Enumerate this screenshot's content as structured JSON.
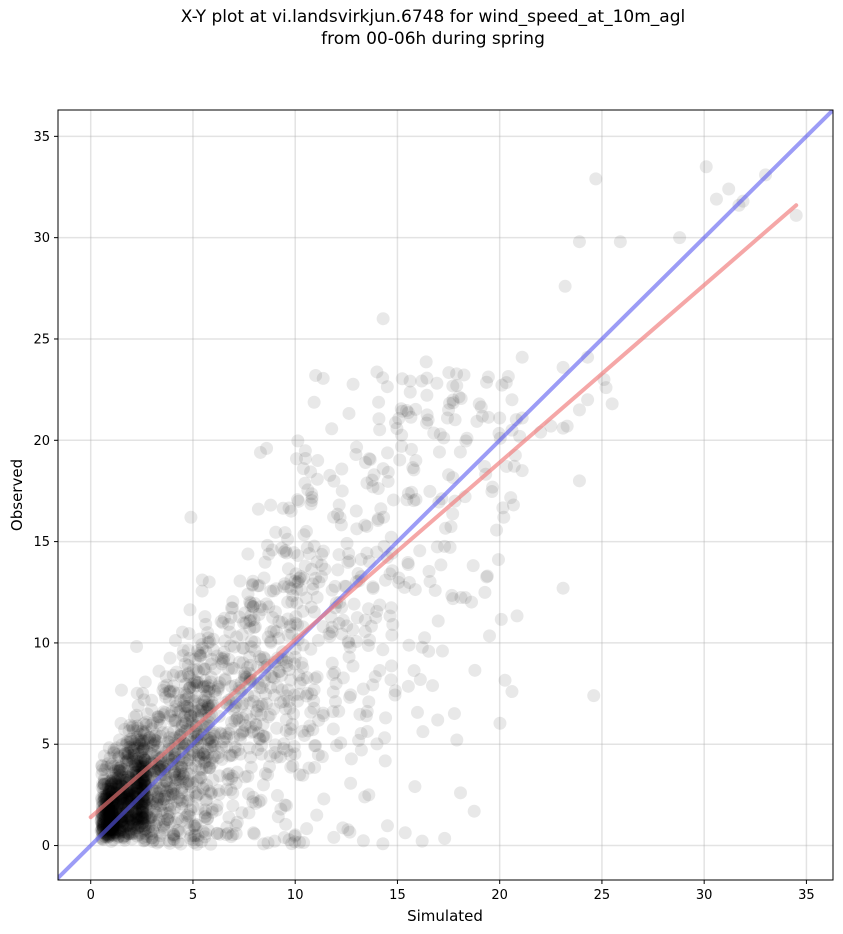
{
  "chart_data": {
    "type": "scatter",
    "title_line1": "X-Y plot at vi.landsvirkjun.6748 for wind_speed_at_10m_agl",
    "title_line2": "from 00-06h during spring",
    "xlabel": "Simulated",
    "ylabel": "Observed",
    "xlim": [
      -1.6,
      36.3
    ],
    "ylim": [
      -1.7,
      36.3
    ],
    "xticks": [
      0,
      5,
      10,
      15,
      20,
      25,
      30,
      35
    ],
    "yticks": [
      0,
      5,
      10,
      15,
      20,
      25,
      30,
      35
    ],
    "grid": true,
    "point_color": "#000000",
    "one_to_one_line": {
      "color": "#5a5af0",
      "from": [
        -1.6,
        -1.6
      ],
      "to": [
        36.3,
        36.3
      ]
    },
    "fit_line": {
      "color": "#f07878",
      "from": [
        0,
        1.4
      ],
      "to": [
        34.5,
        31.6
      ]
    },
    "highlight_points": [
      [
        30.1,
        33.5
      ],
      [
        24.7,
        32.9
      ],
      [
        31.2,
        32.4
      ],
      [
        33.0,
        33.1
      ],
      [
        30.6,
        31.9
      ],
      [
        31.7,
        31.6
      ],
      [
        31.9,
        31.8
      ],
      [
        34.5,
        31.1
      ],
      [
        28.8,
        30.0
      ],
      [
        23.9,
        29.8
      ],
      [
        25.9,
        29.8
      ],
      [
        23.2,
        27.6
      ],
      [
        14.3,
        26.0
      ],
      [
        11.0,
        23.2
      ],
      [
        21.1,
        24.1
      ],
      [
        24.3,
        24.1
      ],
      [
        23.1,
        23.6
      ],
      [
        25.1,
        23.0
      ],
      [
        25.2,
        22.6
      ],
      [
        17.9,
        22.7
      ],
      [
        20.6,
        22.0
      ],
      [
        24.3,
        22.0
      ],
      [
        25.5,
        21.8
      ],
      [
        19.0,
        21.8
      ],
      [
        17.5,
        21.5
      ],
      [
        23.9,
        21.5
      ],
      [
        20.0,
        21.1
      ],
      [
        21.1,
        21.1
      ],
      [
        16.5,
        21.0
      ],
      [
        23.3,
        20.7
      ],
      [
        22.5,
        20.7
      ],
      [
        22.0,
        20.4
      ],
      [
        23.1,
        20.6
      ],
      [
        20.6,
        20.5
      ],
      [
        18.4,
        20.1
      ],
      [
        15.2,
        19.7
      ],
      [
        8.6,
        19.6
      ],
      [
        8.3,
        19.4
      ],
      [
        10.5,
        19.1
      ],
      [
        11.1,
        19.0
      ],
      [
        15.9,
        19.0
      ],
      [
        21.1,
        18.5
      ],
      [
        14.3,
        18.6
      ],
      [
        10.4,
        18.6
      ],
      [
        17.5,
        18.3
      ],
      [
        23.9,
        18.0
      ],
      [
        13.8,
        17.7
      ],
      [
        12.3,
        17.5
      ],
      [
        9.8,
        16.5
      ],
      [
        8.8,
        16.8
      ],
      [
        8.2,
        16.6
      ],
      [
        20.2,
        16.2
      ],
      [
        4.9,
        16.2
      ],
      [
        23.1,
        12.7
      ],
      [
        19.4,
        13.3
      ],
      [
        17.2,
        9.6
      ],
      [
        20.6,
        7.6
      ],
      [
        24.6,
        7.4
      ],
      [
        13.4,
        2.4
      ],
      [
        13.6,
        2.5
      ],
      [
        11.4,
        2.3
      ],
      [
        9.3,
        1.8
      ],
      [
        9.5,
        2.0
      ],
      [
        7.1,
        1.0
      ]
    ],
    "cloud_density_note": ""
  }
}
